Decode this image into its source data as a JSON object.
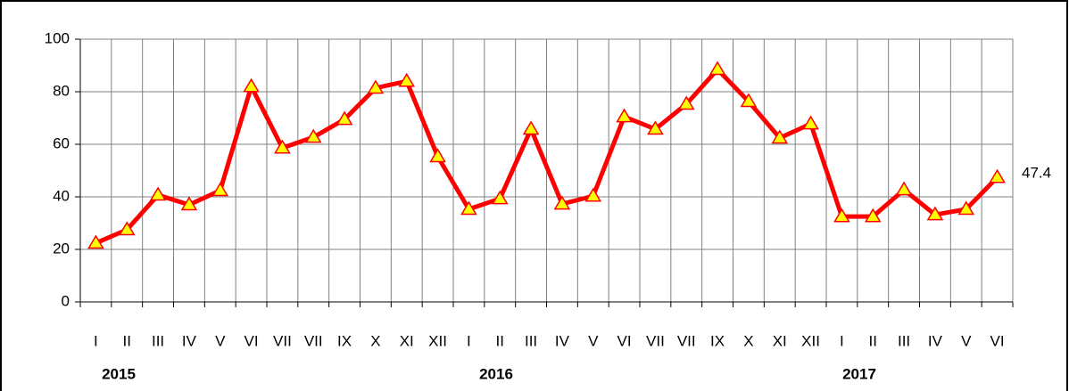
{
  "chart_data": {
    "type": "line",
    "categories": [
      "I",
      "II",
      "III",
      "IV",
      "V",
      "VI",
      "VII",
      "VII",
      "IX",
      "X",
      "XI",
      "XII",
      "I",
      "II",
      "III",
      "IV",
      "V",
      "VI",
      "VII",
      "VII",
      "IX",
      "X",
      "XI",
      "XII",
      "I",
      "II",
      "III",
      "IV",
      "V",
      "VI"
    ],
    "values": [
      22.4,
      27.5,
      40.7,
      37,
      42.4,
      82,
      58.6,
      62.7,
      69.5,
      81.4,
      84,
      55.3,
      35.3,
      39.3,
      65.8,
      37.3,
      40.3,
      70.5,
      65.8,
      75.3,
      88.5,
      76.3,
      62.4,
      67.8,
      32.5,
      32.5,
      42.7,
      33.2,
      35.3,
      47.4
    ],
    "color": "#ff0000",
    "marker_color": "#ffff00",
    "ylim": [
      0,
      100
    ],
    "yticks": [
      0,
      20,
      40,
      60,
      80,
      100
    ],
    "grid": true,
    "year_labels": [
      "2015",
      "2016",
      "2017"
    ]
  }
}
